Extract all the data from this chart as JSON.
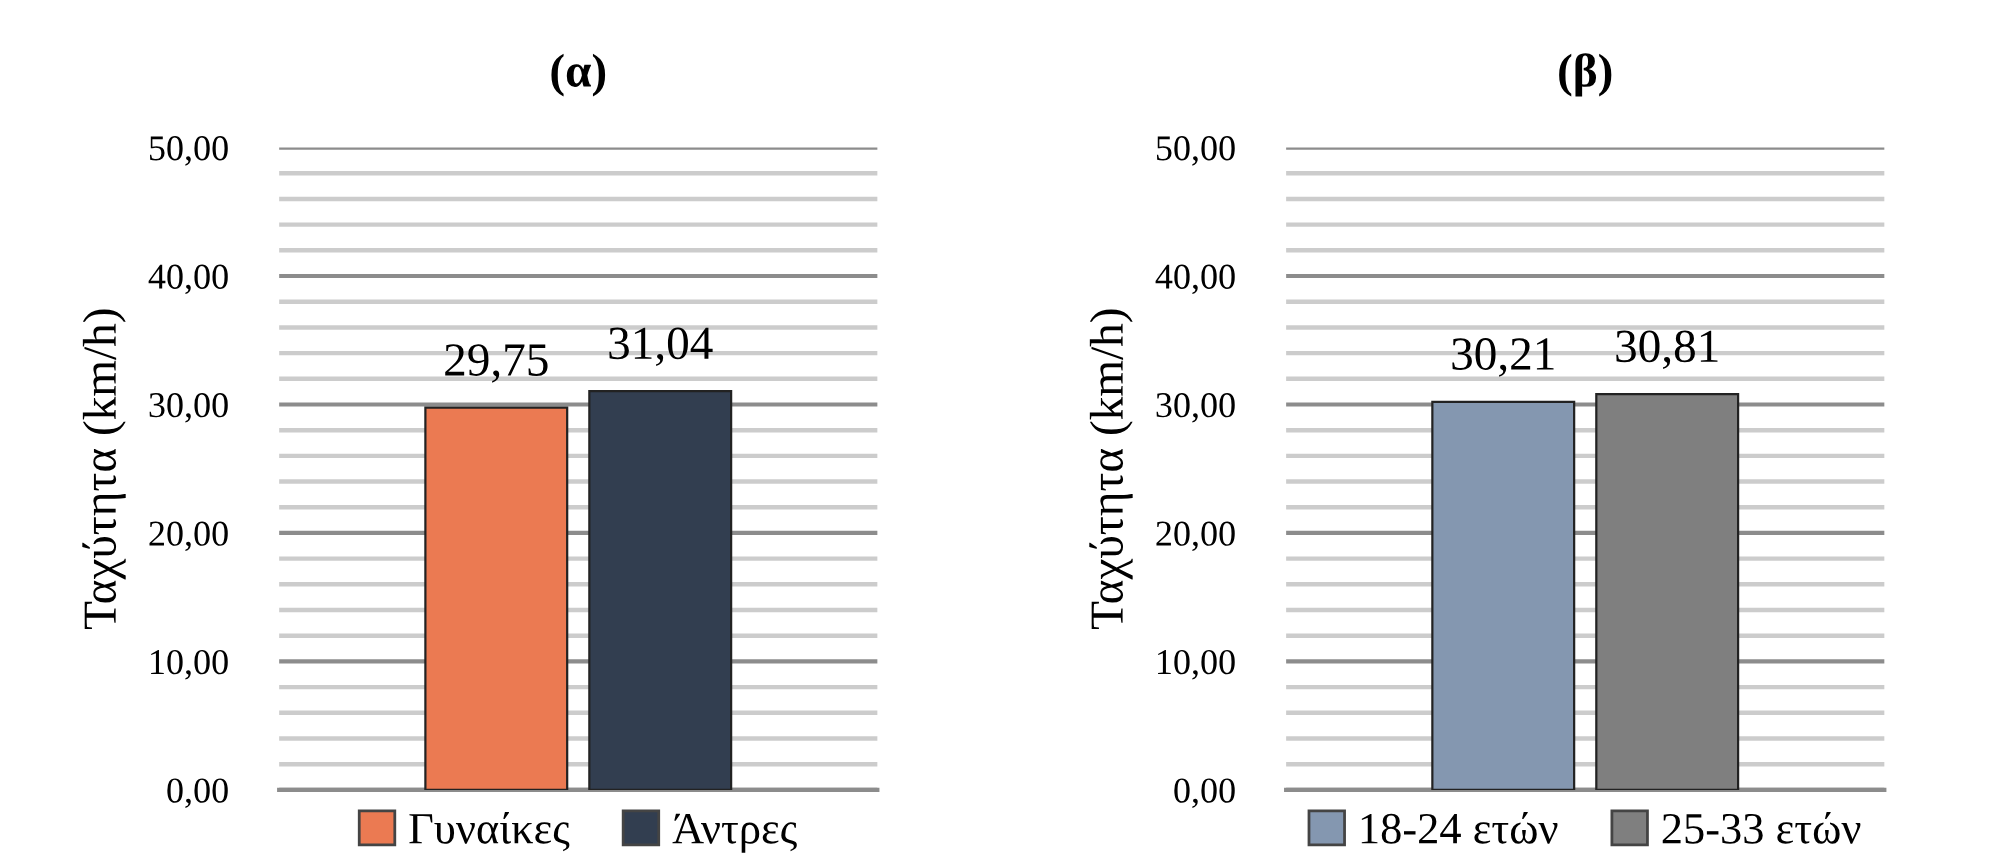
{
  "chart_data": [
    {
      "type": "bar",
      "title": "(α)",
      "ylabel": "Ταχύτητα (km/h)",
      "categories": [
        null
      ],
      "series": [
        {
          "name": "Γυναίκες",
          "color": "#eb7a52",
          "values": [
            29.75
          ],
          "value_labels": [
            "29,75"
          ]
        },
        {
          "name": "Άντρες",
          "color": "#323e50",
          "values": [
            31.04
          ],
          "value_labels": [
            "31,04"
          ]
        }
      ],
      "ylim": [
        0,
        50
      ],
      "yticks": [
        {
          "value": 0,
          "label": "0,00"
        },
        {
          "value": 2,
          "label": null
        },
        {
          "value": 4,
          "label": null
        },
        {
          "value": 6,
          "label": null
        },
        {
          "value": 8,
          "label": null
        },
        {
          "value": 10,
          "label": "10,00"
        },
        {
          "value": 12,
          "label": null
        },
        {
          "value": 14,
          "label": null
        },
        {
          "value": 16,
          "label": null
        },
        {
          "value": 18,
          "label": null
        },
        {
          "value": 20,
          "label": "20,00"
        },
        {
          "value": 22,
          "label": null
        },
        {
          "value": 24,
          "label": null
        },
        {
          "value": 26,
          "label": null
        },
        {
          "value": 28,
          "label": null
        },
        {
          "value": 30,
          "label": "30,00"
        },
        {
          "value": 32,
          "label": null
        },
        {
          "value": 34,
          "label": null
        },
        {
          "value": 36,
          "label": null
        },
        {
          "value": 38,
          "label": null
        },
        {
          "value": 40,
          "label": "40,00"
        },
        {
          "value": 42,
          "label": null
        },
        {
          "value": 44,
          "label": null
        },
        {
          "value": 46,
          "label": null
        },
        {
          "value": 48,
          "label": null
        },
        {
          "value": 50,
          "label": "50,00"
        }
      ],
      "grid": "y",
      "legend": "bottom"
    },
    {
      "type": "bar",
      "title": "(β)",
      "ylabel": "Ταχύτητα (km/h)",
      "categories": [
        null
      ],
      "series": [
        {
          "name": "18-24 ετών",
          "color": "#8497b0",
          "values": [
            30.21
          ],
          "value_labels": [
            "30,21"
          ]
        },
        {
          "name": "25-33 ετών",
          "color": "#7f7f7f",
          "values": [
            30.81
          ],
          "value_labels": [
            "30,81"
          ]
        }
      ],
      "ylim": [
        0,
        50
      ],
      "yticks": [
        {
          "value": 0,
          "label": "0,00"
        },
        {
          "value": 2,
          "label": null
        },
        {
          "value": 4,
          "label": null
        },
        {
          "value": 6,
          "label": null
        },
        {
          "value": 8,
          "label": null
        },
        {
          "value": 10,
          "label": "10,00"
        },
        {
          "value": 12,
          "label": null
        },
        {
          "value": 14,
          "label": null
        },
        {
          "value": 16,
          "label": null
        },
        {
          "value": 18,
          "label": null
        },
        {
          "value": 20,
          "label": "20,00"
        },
        {
          "value": 22,
          "label": null
        },
        {
          "value": 24,
          "label": null
        },
        {
          "value": 26,
          "label": null
        },
        {
          "value": 28,
          "label": null
        },
        {
          "value": 30,
          "label": "30,00"
        },
        {
          "value": 32,
          "label": null
        },
        {
          "value": 34,
          "label": null
        },
        {
          "value": 36,
          "label": null
        },
        {
          "value": 38,
          "label": null
        },
        {
          "value": 40,
          "label": "40,00"
        },
        {
          "value": 42,
          "label": null
        },
        {
          "value": 44,
          "label": null
        },
        {
          "value": 46,
          "label": null
        },
        {
          "value": 48,
          "label": null
        },
        {
          "value": 50,
          "label": "50,00"
        }
      ],
      "grid": "y",
      "legend": "bottom"
    }
  ]
}
